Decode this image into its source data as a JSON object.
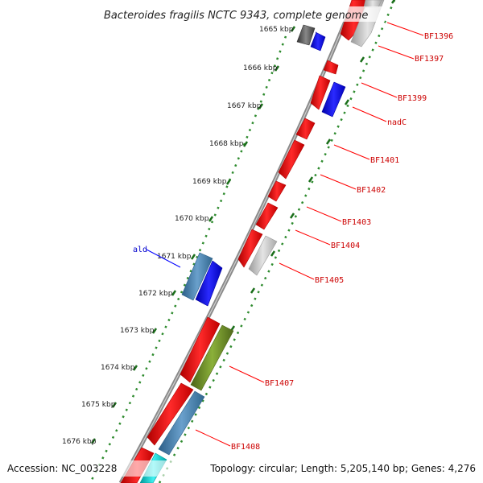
{
  "title": "Bacteroides fragilis NCTC 9343, complete genome",
  "footer": {
    "accession": "Accession: NC_003228",
    "stats": "Topology: circular; Length: 5,205,140 bp; Genes: 4,276"
  },
  "ticks": [
    "1665 kbp",
    "1666 kbp",
    "1667 kbp",
    "1668 kbp",
    "1669 kbp",
    "1670 kbp",
    "1671 kbp",
    "1672 kbp",
    "1673 kbp",
    "1674 kbp",
    "1675 kbp",
    "1676 kbp"
  ],
  "gene_labels": [
    "BF1396",
    "BF1397",
    "BF1399",
    "nadC",
    "BF1401",
    "BF1402",
    "BF1403",
    "BF1404",
    "BF1405",
    "ald",
    "BF1407",
    "BF1408"
  ],
  "colors": {
    "backbone": "#7a7a7a",
    "dotted_track": "#2e8b2e",
    "red_gene": "#ff0000",
    "grey_gene": "#c0c0c0",
    "blue_gene": "#0000ff",
    "steel_gene": "#4682b4",
    "olive_gene": "#6b8e23",
    "cyan_gene": "#00c8c8",
    "dark_gene": "#555555",
    "label_red": "#cc0000",
    "label_blue": "#0000cc"
  }
}
